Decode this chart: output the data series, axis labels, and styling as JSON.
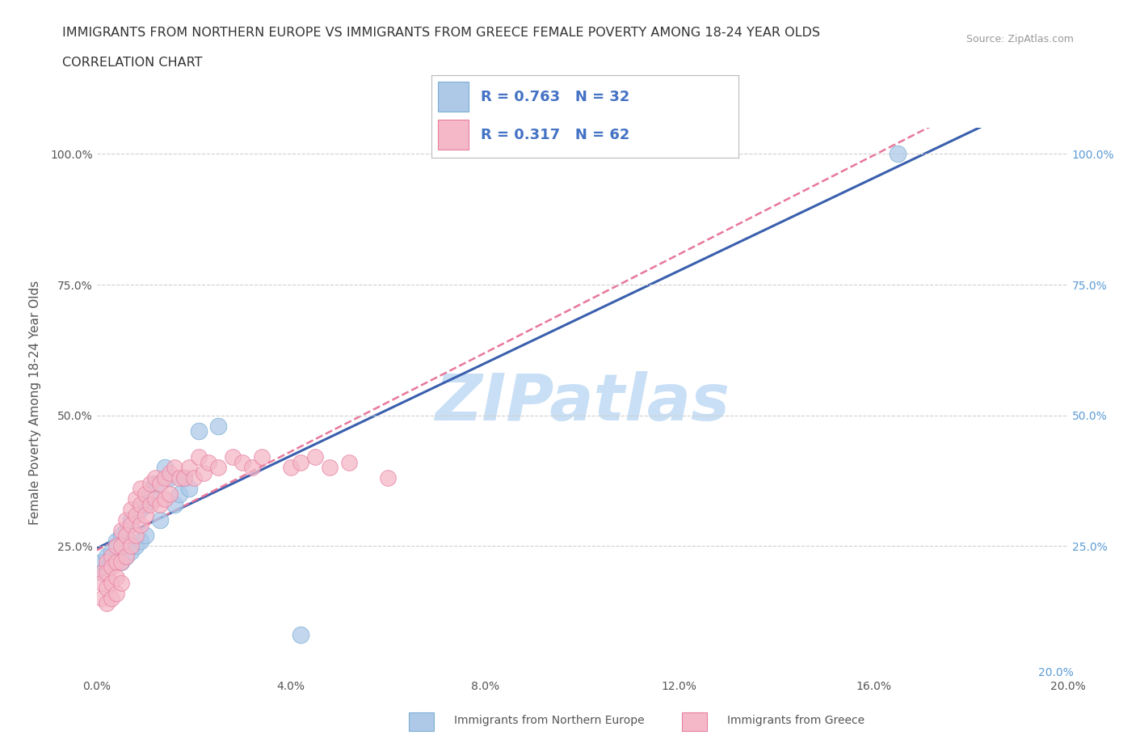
{
  "title_line1": "IMMIGRANTS FROM NORTHERN EUROPE VS IMMIGRANTS FROM GREECE FEMALE POVERTY AMONG 18-24 YEAR OLDS",
  "title_line2": "CORRELATION CHART",
  "source_text": "Source: ZipAtlas.com",
  "ylabel": "Female Poverty Among 18-24 Year Olds",
  "xlim": [
    0.0,
    0.2
  ],
  "ylim": [
    0.0,
    1.05
  ],
  "xticks": [
    0.0,
    0.04,
    0.08,
    0.12,
    0.16,
    0.2
  ],
  "xticklabels": [
    "0.0%",
    "4.0%",
    "8.0%",
    "12.0%",
    "16.0%",
    "20.0%"
  ],
  "yticks_left": [
    0.25,
    0.5,
    0.75,
    1.0
  ],
  "yticklabels_left": [
    "25.0%",
    "50.0%",
    "75.0%",
    "100.0%"
  ],
  "yticks_right": [
    0.25,
    0.5,
    0.75,
    1.0
  ],
  "yticklabels_right": [
    "25.0%",
    "50.0%",
    "75.0%",
    "100.0%"
  ],
  "right_bottom_label": "20.0%",
  "watermark": "ZIPatlas",
  "watermark_color": "#c8dff5",
  "legend_R1": "R = 0.763",
  "legend_N1": "N = 32",
  "legend_R2": "R = 0.317",
  "legend_N2": "N = 62",
  "legend_text_color": "#4472c4",
  "color_blue": "#aec9e8",
  "color_pink": "#f4b8c8",
  "edge_blue": "#7bafd4",
  "edge_pink": "#e87fa0",
  "trend_blue": "#3a5fad",
  "trend_pink": "#e8789a",
  "grid_color": "#d0d0d0",
  "background_color": "#ffffff",
  "blue_x": [
    0.001,
    0.001,
    0.002,
    0.002,
    0.003,
    0.003,
    0.004,
    0.004,
    0.005,
    0.005,
    0.006,
    0.006,
    0.007,
    0.007,
    0.008,
    0.009,
    0.009,
    0.01,
    0.01,
    0.011,
    0.012,
    0.013,
    0.014,
    0.015,
    0.016,
    0.017,
    0.018,
    0.019,
    0.021,
    0.025,
    0.042,
    0.165
  ],
  "blue_y": [
    0.2,
    0.22,
    0.21,
    0.23,
    0.22,
    0.24,
    0.23,
    0.26,
    0.22,
    0.27,
    0.23,
    0.28,
    0.24,
    0.3,
    0.25,
    0.26,
    0.32,
    0.27,
    0.33,
    0.35,
    0.37,
    0.3,
    0.4,
    0.38,
    0.33,
    0.35,
    0.38,
    0.36,
    0.47,
    0.48,
    0.08,
    1.0
  ],
  "pink_x": [
    0.001,
    0.001,
    0.001,
    0.002,
    0.002,
    0.002,
    0.002,
    0.003,
    0.003,
    0.003,
    0.003,
    0.004,
    0.004,
    0.004,
    0.004,
    0.005,
    0.005,
    0.005,
    0.005,
    0.006,
    0.006,
    0.006,
    0.007,
    0.007,
    0.007,
    0.008,
    0.008,
    0.008,
    0.009,
    0.009,
    0.009,
    0.01,
    0.01,
    0.011,
    0.011,
    0.012,
    0.012,
    0.013,
    0.013,
    0.014,
    0.014,
    0.015,
    0.015,
    0.016,
    0.017,
    0.018,
    0.019,
    0.02,
    0.021,
    0.022,
    0.023,
    0.025,
    0.028,
    0.03,
    0.032,
    0.034,
    0.04,
    0.042,
    0.045,
    0.048,
    0.052,
    0.06
  ],
  "pink_y": [
    0.2,
    0.18,
    0.15,
    0.22,
    0.2,
    0.17,
    0.14,
    0.23,
    0.21,
    0.18,
    0.15,
    0.25,
    0.22,
    0.19,
    0.16,
    0.28,
    0.25,
    0.22,
    0.18,
    0.3,
    0.27,
    0.23,
    0.32,
    0.29,
    0.25,
    0.34,
    0.31,
    0.27,
    0.36,
    0.33,
    0.29,
    0.35,
    0.31,
    0.37,
    0.33,
    0.38,
    0.34,
    0.37,
    0.33,
    0.38,
    0.34,
    0.39,
    0.35,
    0.4,
    0.38,
    0.38,
    0.4,
    0.38,
    0.42,
    0.39,
    0.41,
    0.4,
    0.42,
    0.41,
    0.4,
    0.42,
    0.4,
    0.41,
    0.42,
    0.4,
    0.41,
    0.38
  ],
  "bottom_legend_labels": [
    "Immigrants from Northern Europe",
    "Immigrants from Greece"
  ],
  "bottom_legend_colors": [
    "#aec9e8",
    "#f4b8c8"
  ],
  "bottom_legend_edge_colors": [
    "#7bafd4",
    "#e87fa0"
  ]
}
